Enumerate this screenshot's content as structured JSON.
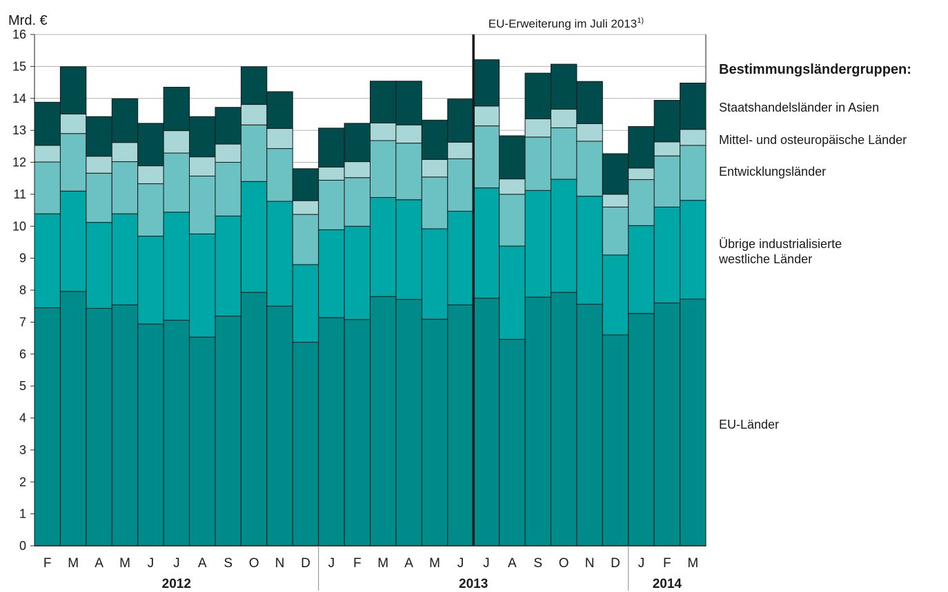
{
  "chart_data": {
    "type": "bar",
    "stacked": true,
    "ylabel": "Mrd. €",
    "ylim": [
      0,
      16
    ],
    "yticks": [
      "0",
      "1",
      "2",
      "3",
      "4",
      "5",
      "6",
      "7",
      "8",
      "9",
      "10",
      "11",
      "12",
      "13",
      "14",
      "15",
      "16"
    ],
    "categories": [
      "F",
      "M",
      "A",
      "M",
      "J",
      "J",
      "A",
      "S",
      "O",
      "N",
      "D",
      "J",
      "F",
      "M",
      "A",
      "M",
      "J",
      "J",
      "A",
      "S",
      "O",
      "N",
      "D",
      "J",
      "F",
      "M"
    ],
    "years": [
      {
        "label": "2012",
        "start": 0,
        "end": 10
      },
      {
        "label": "2013",
        "start": 11,
        "end": 22
      },
      {
        "label": "2014",
        "start": 23,
        "end": 25
      }
    ],
    "annotation": {
      "text": "EU-Erweiterung im Juli 2013",
      "superscript": "1)",
      "after_index": 16
    },
    "legend_title": "Bestimmungsländergruppen:",
    "series": [
      {
        "name": "EU-Länder",
        "color": "#008b8b",
        "values": [
          7.45,
          7.96,
          7.43,
          7.54,
          6.94,
          7.06,
          6.53,
          7.19,
          7.93,
          7.5,
          6.37,
          7.14,
          7.08,
          7.8,
          7.71,
          7.09,
          7.54,
          7.75,
          6.46,
          7.78,
          7.93,
          7.56,
          6.6,
          7.27,
          7.6,
          7.72
        ]
      },
      {
        "name": "Übrige industrialisierte westliche Länder",
        "color": "#00a7a7",
        "values": [
          2.94,
          3.14,
          2.69,
          2.85,
          2.75,
          3.38,
          3.23,
          3.13,
          3.47,
          3.28,
          2.43,
          2.75,
          2.92,
          3.1,
          3.12,
          2.83,
          2.93,
          3.45,
          2.92,
          3.34,
          3.54,
          3.38,
          2.5,
          2.75,
          3.0,
          3.09
        ]
      },
      {
        "name": "Entwicklungsländer",
        "color": "#6cc2c2",
        "values": [
          1.62,
          1.8,
          1.54,
          1.63,
          1.64,
          1.85,
          1.81,
          1.68,
          1.77,
          1.65,
          1.57,
          1.55,
          1.52,
          1.78,
          1.77,
          1.62,
          1.64,
          1.94,
          1.62,
          1.67,
          1.61,
          1.72,
          1.5,
          1.44,
          1.6,
          1.72
        ]
      },
      {
        "name": "Mittel- und osteuropäische Länder",
        "color": "#a9d6d6",
        "values": [
          0.52,
          0.61,
          0.53,
          0.6,
          0.56,
          0.7,
          0.6,
          0.57,
          0.64,
          0.63,
          0.43,
          0.41,
          0.5,
          0.55,
          0.57,
          0.55,
          0.52,
          0.62,
          0.48,
          0.57,
          0.58,
          0.55,
          0.4,
          0.36,
          0.44,
          0.5
        ]
      },
      {
        "name": "Staatshandelsländer in Asien",
        "color": "#004c4c",
        "values": [
          1.35,
          1.48,
          1.24,
          1.37,
          1.33,
          1.36,
          1.26,
          1.15,
          1.18,
          1.15,
          1.0,
          1.22,
          1.2,
          1.31,
          1.37,
          1.23,
          1.35,
          1.45,
          1.35,
          1.43,
          1.41,
          1.32,
          1.27,
          1.3,
          1.3,
          1.45
        ]
      }
    ]
  }
}
